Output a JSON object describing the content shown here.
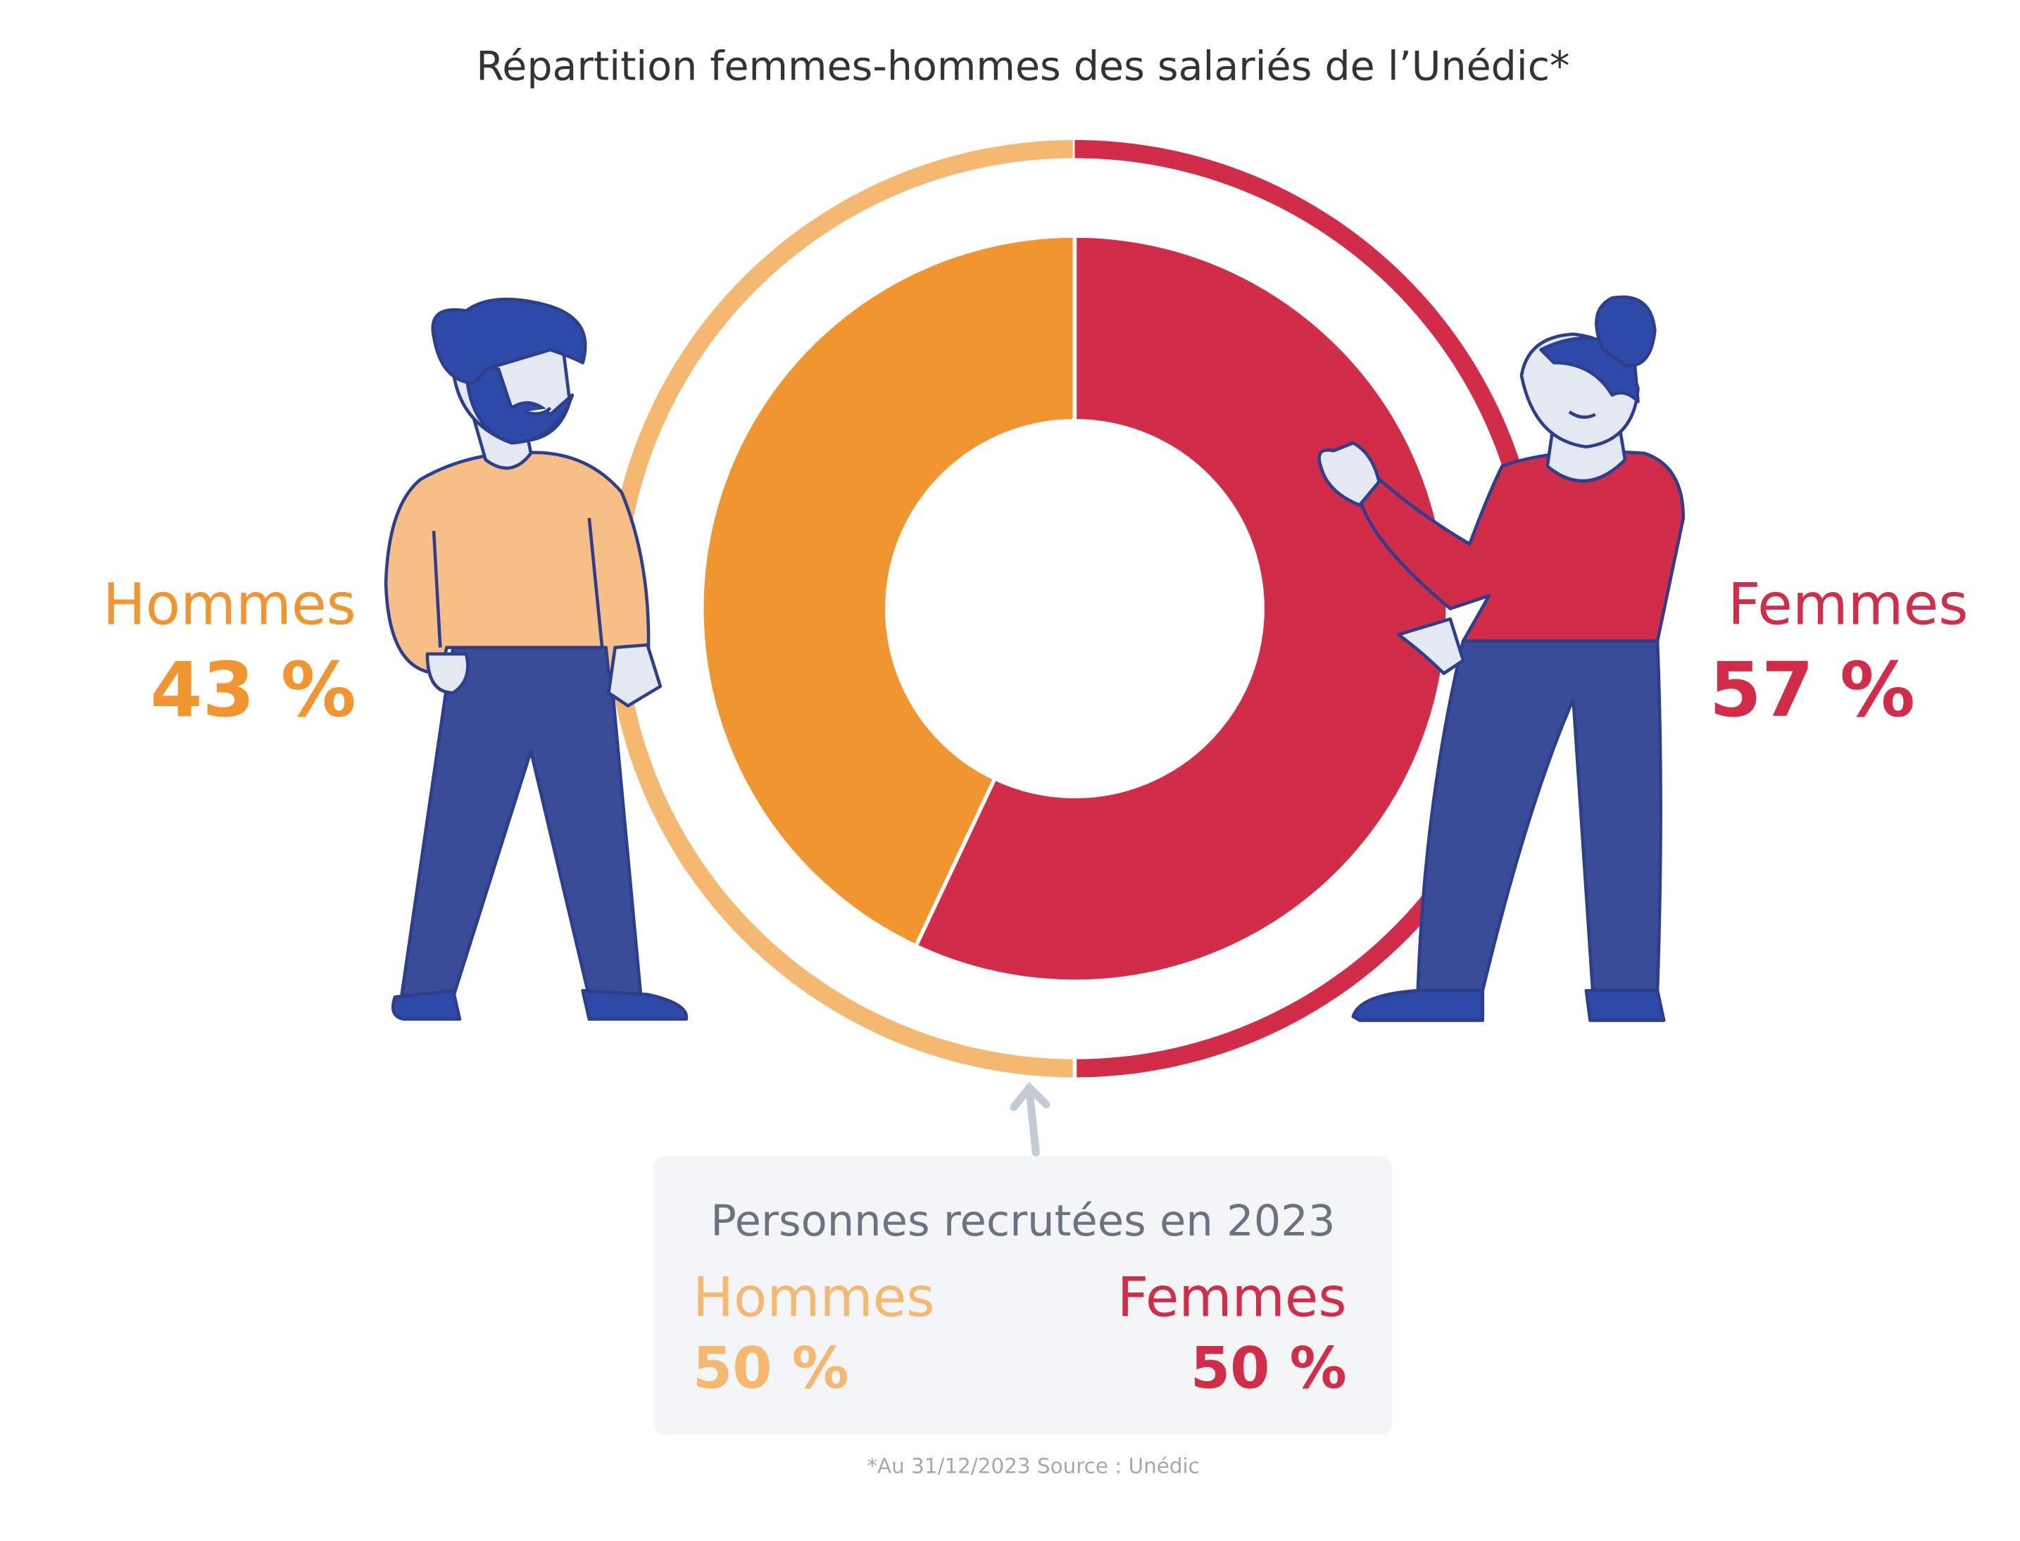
{
  "chart_data": [
    {
      "type": "pie",
      "title": "Répartition femmes-hommes des salariés de l’Unédic*",
      "categories": [
        "Hommes",
        "Femmes"
      ],
      "values": [
        43,
        57
      ],
      "value_labels": [
        "43 %",
        "57 %"
      ],
      "colors": [
        "#f0952f",
        "#d12c48"
      ],
      "note": "*Au 31/12/2023  Source : Unédic"
    },
    {
      "type": "pie",
      "title": "Personnes recrutées en 2023",
      "categories": [
        "Hommes",
        "Femmes"
      ],
      "values": [
        50,
        50
      ],
      "value_labels": [
        "50 %",
        "50 %"
      ],
      "colors": [
        "#f5b871",
        "#d12c48"
      ]
    }
  ]
}
